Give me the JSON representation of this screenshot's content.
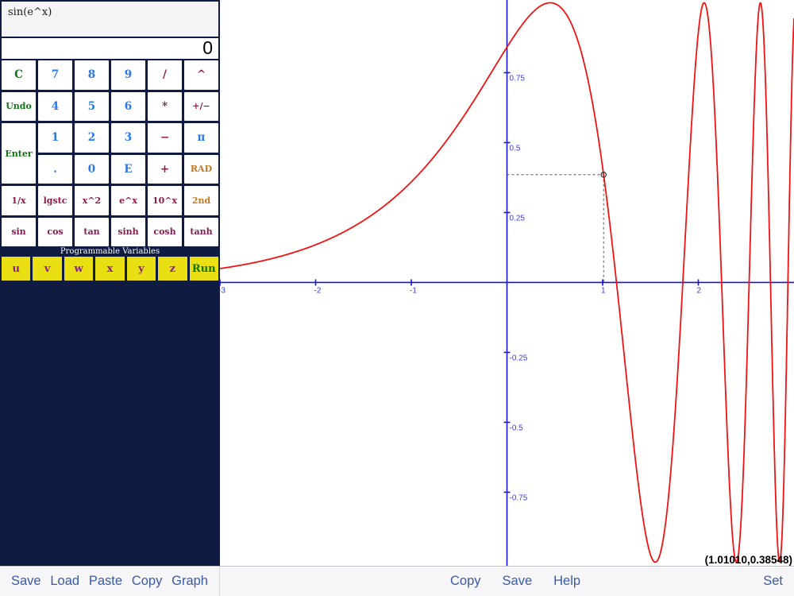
{
  "calculator": {
    "expression": "sin(e^x)",
    "result": "0",
    "keys": [
      {
        "label": "C",
        "color": "green"
      },
      {
        "label": "7",
        "color": "blue"
      },
      {
        "label": "8",
        "color": "blue"
      },
      {
        "label": "9",
        "color": "blue"
      },
      {
        "label": "/",
        "color": "maroon"
      },
      {
        "label": "^",
        "color": "maroon"
      },
      {
        "label": "Undo",
        "color": "green",
        "small": true
      },
      {
        "label": "4",
        "color": "blue"
      },
      {
        "label": "5",
        "color": "blue"
      },
      {
        "label": "6",
        "color": "blue"
      },
      {
        "label": "*",
        "color": "maroon"
      },
      {
        "label": "+/−",
        "color": "maroon",
        "small": true
      },
      {
        "label": "Enter",
        "color": "green",
        "small": true,
        "rowspan": 2
      },
      {
        "label": "1",
        "color": "blue"
      },
      {
        "label": "2",
        "color": "blue"
      },
      {
        "label": "3",
        "color": "blue"
      },
      {
        "label": "−",
        "color": "maroon"
      },
      {
        "label": "π",
        "color": "blue"
      },
      {
        "label": ".",
        "color": "blue"
      },
      {
        "label": "0",
        "color": "blue"
      },
      {
        "label": "E",
        "color": "blue"
      },
      {
        "label": "+",
        "color": "maroon"
      },
      {
        "label": "RAD",
        "color": "orange",
        "small": true
      },
      {
        "label": "1/x",
        "color": "maroon",
        "small": true
      },
      {
        "label": "lgstc",
        "color": "maroon",
        "small": true
      },
      {
        "label": "x^2",
        "color": "maroon",
        "small": true
      },
      {
        "label": "e^x",
        "color": "maroon",
        "small": true
      },
      {
        "label": "10^x",
        "color": "maroon",
        "small": true
      },
      {
        "label": "2nd",
        "color": "orange",
        "small": true
      },
      {
        "label": "sin",
        "color": "maroon",
        "small": true
      },
      {
        "label": "cos",
        "color": "maroon",
        "small": true
      },
      {
        "label": "tan",
        "color": "maroon",
        "small": true
      },
      {
        "label": "sinh",
        "color": "maroon",
        "small": true
      },
      {
        "label": "cosh",
        "color": "maroon",
        "small": true
      },
      {
        "label": "tanh",
        "color": "maroon",
        "small": true
      }
    ],
    "variables_header": "Programmable Variables",
    "variable_keys": [
      {
        "label": "u",
        "color": "purple"
      },
      {
        "label": "v",
        "color": "purple"
      },
      {
        "label": "w",
        "color": "purple"
      },
      {
        "label": "x",
        "color": "purple"
      },
      {
        "label": "y",
        "color": "purple"
      },
      {
        "label": "z",
        "color": "purple"
      },
      {
        "label": "Run",
        "color": "green"
      }
    ]
  },
  "toolbar_left": {
    "items": [
      "Save",
      "Load",
      "Paste",
      "Copy",
      "Graph"
    ]
  },
  "toolbar_right": {
    "items": [
      "Copy",
      "Save",
      "Help"
    ],
    "right_item": "Set"
  },
  "chart_data": {
    "type": "line",
    "title": "",
    "xlabel": "",
    "ylabel": "",
    "function": "sin(e^x)",
    "x_range": [
      -3,
      3
    ],
    "y_range": [
      -1.013,
      1.01
    ],
    "x_ticks": [
      -3,
      -2,
      -1,
      1,
      2
    ],
    "y_ticks": [
      0.75,
      0.5,
      0.25,
      -0.25,
      -0.5,
      -0.75
    ],
    "grid": false,
    "legend": null,
    "axis_color": "#1414d8",
    "tick_label_color": "#3c3ce0",
    "curve_color": "#ee1414",
    "crosshair": {
      "x": 1.0101,
      "y": 0.38548,
      "label": "(1.01010,0.38548)",
      "line_color": "#555555",
      "marker_color": "#333333"
    }
  },
  "colors": {
    "panel_navy": "#0f1b40",
    "key_yellow": "#e9df12",
    "key_green": "#107612",
    "key_blue": "#2878e8",
    "key_maroon": "#8c1a4e",
    "key_orange": "#c5791f",
    "key_purple": "#8a2090",
    "toolbar_blue": "#3a5aa5",
    "toolbar_bg": "#f6f6f8"
  }
}
